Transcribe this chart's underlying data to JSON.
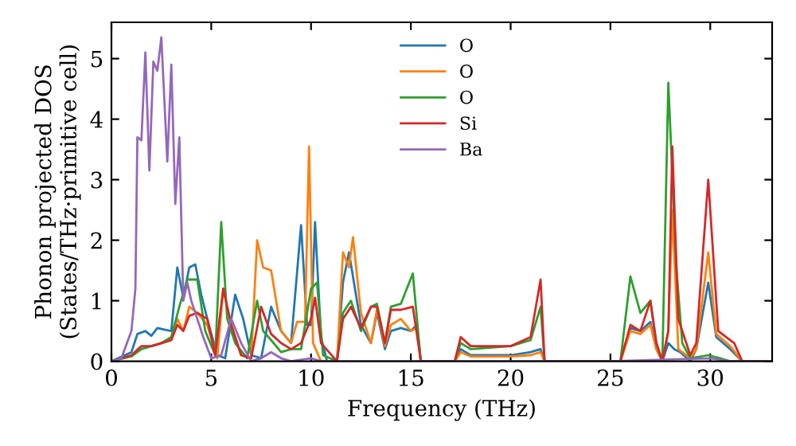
{
  "chart_data": {
    "type": "line",
    "xlabel": "Frequency (THz)",
    "ylabel": "Phonon projected DOS\n(States/THz·primitive cell)",
    "xlim": [
      0,
      33.1
    ],
    "ylim": [
      0,
      5.6
    ],
    "xticks": [
      0,
      5,
      10,
      15,
      20,
      25,
      30
    ],
    "yticks": [
      0,
      1,
      2,
      3,
      4,
      5
    ],
    "grid": false,
    "legend": "top",
    "marker": "none",
    "line_style": "solid",
    "series": [
      {
        "name": "O",
        "color": "#1f77b4",
        "x": [
          0,
          1,
          1.3,
          1.7,
          2.0,
          2.3,
          2.7,
          3.0,
          3.3,
          3.6,
          3.9,
          4.2,
          4.5,
          4.8,
          5.3,
          5.7,
          6.2,
          6.6,
          7.0,
          7.5,
          8,
          8.5,
          9,
          9.5,
          9.8,
          10.0,
          10.2,
          10.5,
          10.8,
          11.3,
          11.6,
          11.9,
          12.1,
          12.5,
          13,
          13.3,
          13.7,
          14,
          14.5,
          15,
          15.3,
          15.5,
          17.2,
          17.5,
          18,
          20,
          21,
          21.5,
          21.7,
          25.5,
          26,
          26.5,
          27,
          27.3,
          27.6,
          27.9,
          28.2,
          28.5,
          29,
          29.3,
          29.9,
          30.3,
          31,
          31.6,
          33
        ],
        "values": [
          0,
          0.15,
          0.45,
          0.5,
          0.42,
          0.55,
          0.52,
          0.5,
          1.55,
          1.05,
          1.55,
          1.6,
          1.1,
          0.7,
          0.1,
          0.05,
          1.1,
          0.7,
          0.1,
          0.05,
          0.9,
          0.5,
          0.3,
          2.25,
          0.6,
          0.6,
          2.3,
          0.4,
          0,
          0,
          1.3,
          1.8,
          1.4,
          0.6,
          0.3,
          0.8,
          0.2,
          0.5,
          0.55,
          0.5,
          0.6,
          0,
          0,
          0.2,
          0.1,
          0.1,
          0.15,
          0.2,
          0,
          0,
          0.55,
          0.5,
          0.65,
          0.2,
          0,
          0.3,
          0.2,
          0.15,
          0,
          0.2,
          1.3,
          0.4,
          0.2,
          0,
          0
        ]
      },
      {
        "name": "O",
        "color": "#ff7f0e",
        "x": [
          2,
          2.5,
          3,
          3.3,
          3.6,
          3.9,
          4.3,
          4.8,
          5.3,
          5.6,
          6.0,
          6.5,
          7.0,
          7.3,
          7.6,
          8,
          8.5,
          9,
          9.3,
          9.7,
          9.9,
          10.1,
          10.5,
          11.3,
          11.6,
          11.9,
          12.1,
          12.5,
          13,
          13.3,
          13.7,
          14,
          14.5,
          15,
          15.3,
          15.5,
          17.2,
          17.5,
          18,
          20,
          21,
          21.5,
          21.7,
          25.5,
          26,
          26.5,
          27,
          27.3,
          27.6,
          27.9,
          28.1,
          28.4,
          29,
          29.3,
          29.9,
          30.3,
          31,
          31.6,
          33
        ],
        "values": [
          0.25,
          0.3,
          0.35,
          0.7,
          0.5,
          0.9,
          0.8,
          0.6,
          0.05,
          1.2,
          0.6,
          0.1,
          0.05,
          2.0,
          1.55,
          1.5,
          0.5,
          0.3,
          0.65,
          0.65,
          3.55,
          0.3,
          0,
          0,
          1.8,
          1.55,
          2.05,
          0.8,
          0.3,
          0.85,
          0.25,
          0.6,
          0.7,
          0.5,
          0.55,
          0,
          0,
          0.15,
          0.08,
          0.08,
          0.1,
          0.15,
          0,
          0,
          0.5,
          0.45,
          0.6,
          0.2,
          0,
          0.5,
          2.5,
          0.2,
          0.05,
          0.2,
          1.8,
          0.45,
          0.25,
          0,
          0
        ]
      },
      {
        "name": "O",
        "color": "#2ca02c",
        "x": [
          0,
          1,
          1.5,
          2,
          2.5,
          3,
          3.4,
          3.8,
          4.3,
          4.7,
          5.2,
          5.5,
          5.8,
          6.2,
          6.8,
          7.3,
          7.6,
          8,
          8.5,
          9,
          9.5,
          10.0,
          10.3,
          10.6,
          11.3,
          11.6,
          12,
          12.5,
          13,
          13.3,
          13.7,
          14,
          14.5,
          15.1,
          15.5,
          17.2,
          17.5,
          18,
          20,
          21,
          21.5,
          21.7,
          25.5,
          26,
          26.5,
          27,
          27.3,
          27.6,
          27.9,
          28.3,
          28.6,
          29,
          29.9,
          30.5,
          31,
          33
        ],
        "values": [
          0,
          0.08,
          0.2,
          0.25,
          0.3,
          0.4,
          0.9,
          1.35,
          1.35,
          0.5,
          0.1,
          2.3,
          0.7,
          0.3,
          0.05,
          1.0,
          0.5,
          0.35,
          0.15,
          0.2,
          0.2,
          1.2,
          1.3,
          0.1,
          0,
          0.8,
          1.0,
          0.5,
          0.9,
          0.95,
          0.3,
          0.9,
          0.95,
          1.45,
          0,
          0,
          0.3,
          0.2,
          0.25,
          0.35,
          0.9,
          0,
          0,
          1.4,
          0.8,
          1.0,
          0.3,
          0,
          4.6,
          1.55,
          0.3,
          0.05,
          0.1,
          0.05,
          0,
          0
        ]
      },
      {
        "name": "Si",
        "color": "#d62728",
        "x": [
          0,
          1,
          1.5,
          2,
          2.5,
          3,
          3.3,
          3.6,
          3.9,
          4.3,
          4.8,
          5.2,
          5.6,
          6.0,
          6.5,
          7.0,
          7.5,
          8,
          8.5,
          9,
          9.5,
          10.0,
          10.2,
          10.5,
          11.3,
          11.6,
          12,
          12.5,
          13,
          13.3,
          13.7,
          14,
          14.5,
          15.1,
          15.5,
          17.2,
          17.5,
          18,
          20,
          21,
          21.5,
          21.7,
          25.5,
          26,
          26.5,
          27,
          27.3,
          27.6,
          27.9,
          28.1,
          28.4,
          29,
          29.3,
          29.9,
          30.4,
          31.2,
          31.6,
          33
        ],
        "values": [
          0,
          0.1,
          0.25,
          0.25,
          0.3,
          0.35,
          0.6,
          0.5,
          0.75,
          0.8,
          0.7,
          0.1,
          1.2,
          0.6,
          0.1,
          0.05,
          0.9,
          0.45,
          0.3,
          0.2,
          0.3,
          0.7,
          1.05,
          0.3,
          0,
          0.7,
          0.9,
          0.55,
          0.9,
          0.9,
          0.3,
          0.85,
          0.85,
          0.9,
          0,
          0,
          0.4,
          0.25,
          0.25,
          0.4,
          1.35,
          0,
          0,
          0.6,
          0.5,
          1.0,
          0.3,
          0,
          0.5,
          3.55,
          0.7,
          0.1,
          0.3,
          3.0,
          0.5,
          0.3,
          0,
          0
        ]
      },
      {
        "name": "Ba",
        "color": "#9467bd",
        "x": [
          0,
          0.5,
          1,
          1.2,
          1.3,
          1.5,
          1.7,
          1.9,
          2.1,
          2.3,
          2.5,
          2.8,
          3.0,
          3.2,
          3.4,
          3.6,
          3.8,
          4.0,
          4.3,
          4.6,
          5,
          5.5,
          6.0,
          6.5,
          7,
          7.5,
          8,
          8.5,
          9,
          10,
          10.5,
          15,
          20,
          25,
          30,
          31,
          33
        ],
        "values": [
          0,
          0.05,
          0.5,
          1.2,
          3.7,
          3.65,
          5.1,
          3.15,
          4.95,
          4.8,
          5.35,
          3.3,
          4.9,
          2.6,
          3.7,
          1.0,
          1.3,
          1.0,
          0.7,
          0.4,
          0.05,
          0.1,
          0.7,
          0.3,
          0,
          0.05,
          0.15,
          0.05,
          0,
          0.05,
          0,
          0,
          0,
          0,
          0.05,
          0,
          0
        ]
      }
    ]
  }
}
